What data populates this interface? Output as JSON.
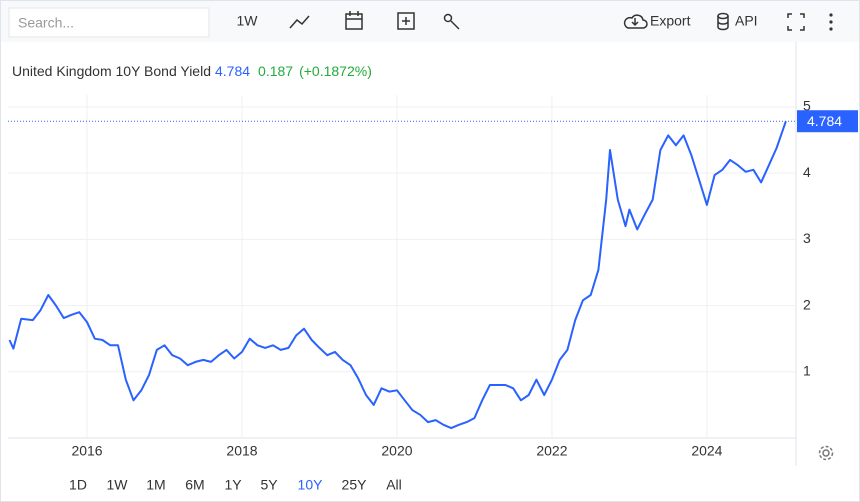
{
  "ui": {
    "search_placeholder": "Search...",
    "interval": "1W",
    "export": "Export",
    "api": "API",
    "ranges": [
      "1D",
      "1W",
      "1M",
      "6M",
      "1Y",
      "5Y",
      "10Y",
      "25Y",
      "All"
    ],
    "selected_range": "10Y"
  },
  "chart_data": {
    "type": "line",
    "legend": {
      "name": "United Kingdom 10Y Bond Yield",
      "change": 0.187,
      "change_percent": "(+0.1872%)"
    },
    "x": [
      2015.0,
      2015.05,
      2015.15,
      2015.3,
      2015.4,
      2015.5,
      2015.6,
      2015.7,
      2015.8,
      2015.9,
      2016.0,
      2016.1,
      2016.2,
      2016.3,
      2016.4,
      2016.5,
      2016.6,
      2016.7,
      2016.8,
      2016.9,
      2017.0,
      2017.1,
      2017.2,
      2017.3,
      2017.4,
      2017.5,
      2017.6,
      2017.7,
      2017.8,
      2017.9,
      2018.0,
      2018.1,
      2018.2,
      2018.3,
      2018.4,
      2018.5,
      2018.6,
      2018.7,
      2018.8,
      2018.9,
      2019.0,
      2019.1,
      2019.2,
      2019.3,
      2019.4,
      2019.5,
      2019.6,
      2019.7,
      2019.8,
      2019.9,
      2020.0,
      2020.1,
      2020.2,
      2020.3,
      2020.4,
      2020.5,
      2020.6,
      2020.7,
      2020.8,
      2020.9,
      2021.0,
      2021.1,
      2021.2,
      2021.3,
      2021.4,
      2021.5,
      2021.6,
      2021.7,
      2021.8,
      2021.9,
      2022.0,
      2022.1,
      2022.2,
      2022.3,
      2022.4,
      2022.5,
      2022.6,
      2022.7,
      2022.75,
      2022.85,
      2022.95,
      2023.0,
      2023.1,
      2023.2,
      2023.3,
      2023.4,
      2023.5,
      2023.6,
      2023.7,
      2023.8,
      2023.9,
      2024.0,
      2024.1,
      2024.2,
      2024.3,
      2024.4,
      2024.5,
      2024.6,
      2024.7,
      2024.8,
      2024.9,
      2025.0,
      2025.02
    ],
    "series": [
      {
        "name": "United Kingdom 10Y Bond Yield",
        "color": "#2962ff",
        "values": [
          1.48,
          1.35,
          1.8,
          1.78,
          1.93,
          2.16,
          2.0,
          1.81,
          1.86,
          1.9,
          1.75,
          1.5,
          1.48,
          1.4,
          1.4,
          0.88,
          0.57,
          0.72,
          0.95,
          1.33,
          1.4,
          1.25,
          1.2,
          1.1,
          1.15,
          1.18,
          1.15,
          1.25,
          1.33,
          1.2,
          1.3,
          1.5,
          1.4,
          1.36,
          1.4,
          1.33,
          1.36,
          1.55,
          1.65,
          1.48,
          1.36,
          1.25,
          1.3,
          1.18,
          1.1,
          0.9,
          0.65,
          0.5,
          0.75,
          0.7,
          0.72,
          0.57,
          0.42,
          0.35,
          0.24,
          0.27,
          0.2,
          0.15,
          0.2,
          0.24,
          0.3,
          0.57,
          0.8,
          0.8,
          0.8,
          0.75,
          0.57,
          0.65,
          0.88,
          0.65,
          0.88,
          1.18,
          1.33,
          1.78,
          2.08,
          2.16,
          2.54,
          3.6,
          4.35,
          3.6,
          3.2,
          3.45,
          3.15,
          3.38,
          3.6,
          4.35,
          4.57,
          4.42,
          4.57,
          4.27,
          3.9,
          3.52,
          3.97,
          4.05,
          4.2,
          4.12,
          4.02,
          4.05,
          3.86,
          4.12,
          4.38,
          4.72,
          4.784
        ]
      }
    ],
    "xlim": [
      2014.98,
      2025.15
    ],
    "xticks": [
      2016,
      2018,
      2020,
      2022,
      2024
    ],
    "ylim": [
      0,
      5.18
    ],
    "yticks": [
      1,
      2,
      3,
      4,
      5
    ],
    "grid": true,
    "last_value_line": true
  }
}
